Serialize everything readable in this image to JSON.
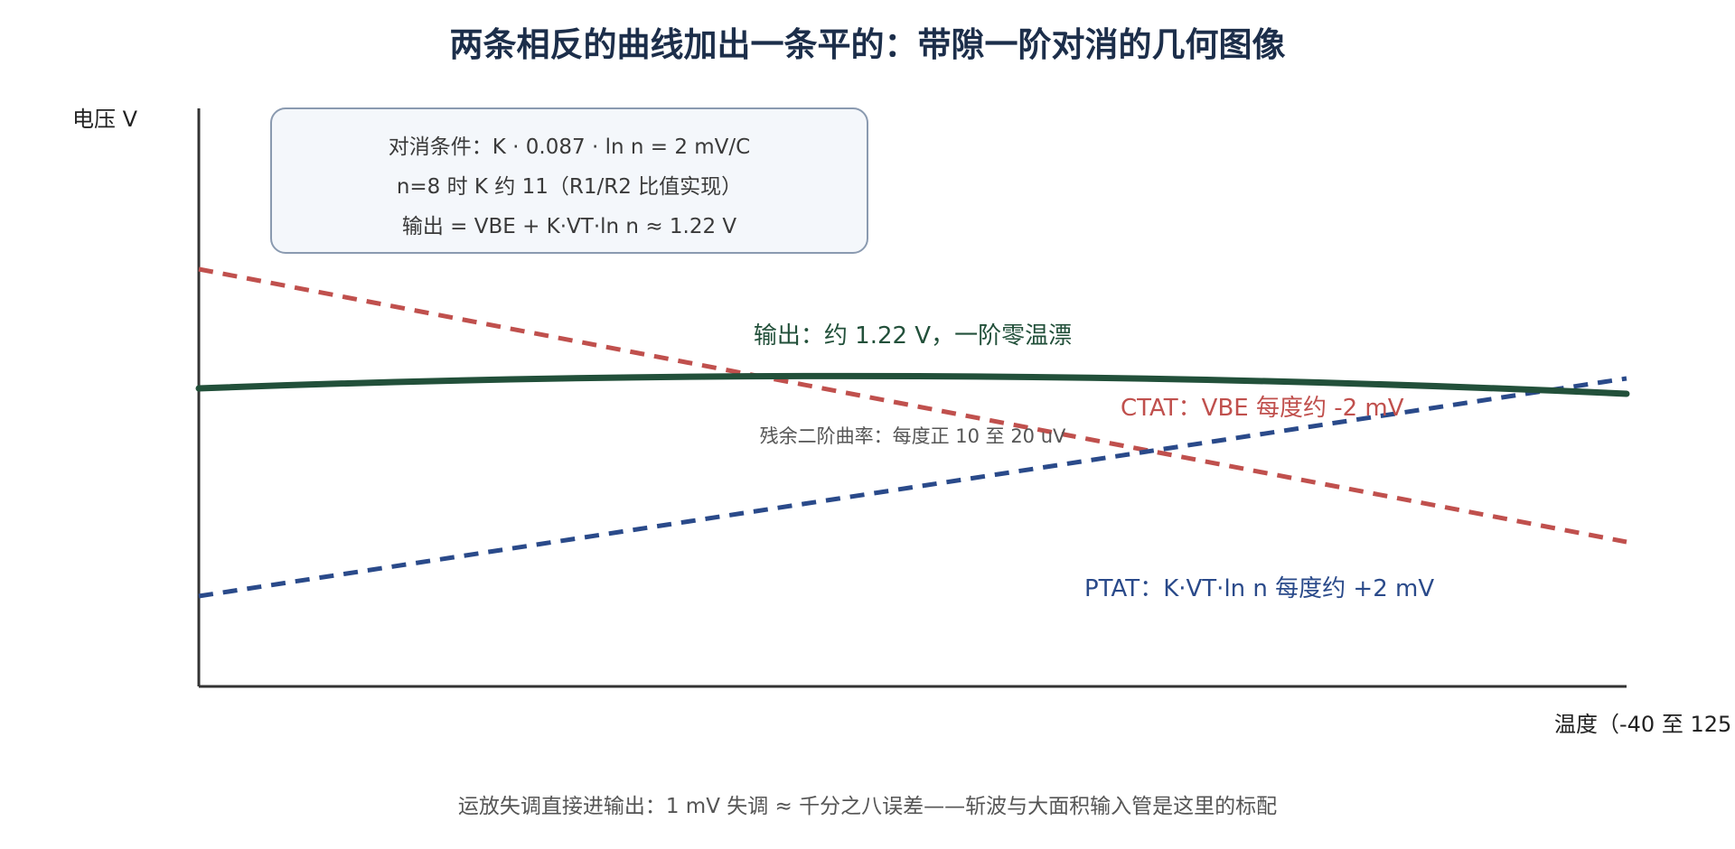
{
  "title": "两条相反的曲线加出一条平的：带隙一阶对消的几何图像",
  "axes": {
    "ylabel": "电压 V",
    "xlabel": "温度（-40 至 125"
  },
  "note_box": {
    "lines": [
      "对消条件：K · 0.087 · ln n = 2 mV/C",
      "n=8 时 K 约 11（R1/R2 比值实现）",
      "输出 = VBE + K·VT·ln n ≈ 1.22 V"
    ]
  },
  "curves": {
    "output": {
      "label": "输出：约 1.22 V，一阶零温漂",
      "color": "#22503a"
    },
    "ctat": {
      "label": "CTAT：VBE 每度约 -2 mV",
      "color": "#c0504d"
    },
    "ptat": {
      "label": "PTAT：K·VT·ln n 每度约 +2 mV",
      "color": "#2a4a8a"
    }
  },
  "residual_note": "残余二阶曲率：每度正 10 至 20 uV",
  "footer": "运放失调直接进输出：1 mV 失调 ≈ 千分之八误差——斩波与大面积输入管是这里的标配",
  "colors": {
    "title": "#1c2e4a",
    "axis": "#333333",
    "box_fill": "#f4f7fb",
    "box_stroke": "#8a9ab0"
  }
}
